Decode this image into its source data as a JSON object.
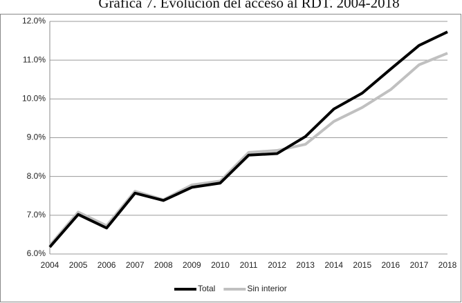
{
  "chart_data": {
    "type": "line",
    "title": "Gráfica 7. Evolución del acceso al RDT. 2004-2018",
    "categories": [
      "2004",
      "2005",
      "2006",
      "2007",
      "2008",
      "2009",
      "2010",
      "2011",
      "2012",
      "2013",
      "2014",
      "2015",
      "2016",
      "2017",
      "2018"
    ],
    "series": [
      {
        "name": "Total",
        "color": "#000000",
        "values": [
          6.18,
          7.02,
          6.67,
          7.57,
          7.38,
          7.72,
          7.83,
          8.55,
          8.59,
          9.03,
          9.74,
          10.15,
          10.77,
          11.38,
          11.73
        ]
      },
      {
        "name": "Sin interior",
        "color": "#c0c0c0",
        "values": [
          6.22,
          7.08,
          6.73,
          7.62,
          7.4,
          7.78,
          7.88,
          8.62,
          8.67,
          8.83,
          9.42,
          9.78,
          10.24,
          10.88,
          11.18
        ]
      }
    ],
    "ylim": [
      6,
      12
    ],
    "yticks": [
      {
        "value": 6,
        "label": "6.0%"
      },
      {
        "value": 7,
        "label": "7.0%"
      },
      {
        "value": 8,
        "label": "8.0%"
      },
      {
        "value": 9,
        "label": "9.0%"
      },
      {
        "value": 10,
        "label": "10.0%"
      },
      {
        "value": 11,
        "label": "11.0%"
      },
      {
        "value": 12,
        "label": "12.0%"
      }
    ],
    "grid": true,
    "legend": "bottom"
  }
}
